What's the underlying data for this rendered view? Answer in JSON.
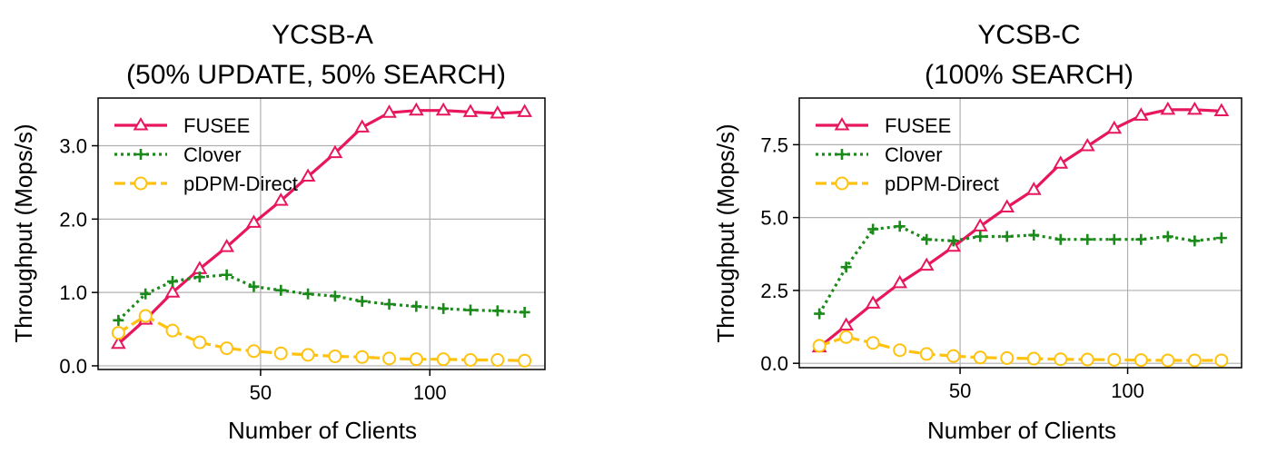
{
  "colors": {
    "fusee": "#e8175d",
    "clover": "#1a8a1a",
    "pdpm": "#ffc20e",
    "grid": "#b0b0b0",
    "axis": "#000000"
  },
  "chart_data": [
    {
      "type": "line",
      "title": "YCSB-A",
      "subtitle": "(50% UPDATE, 50% SEARCH)",
      "xlabel": "Number of Clients",
      "ylabel": "Throughput (Mops/s)",
      "xlim": [
        2,
        134
      ],
      "ylim": [
        -0.05,
        3.65
      ],
      "xticks": [
        50,
        100
      ],
      "yticks": [
        0.0,
        1.0,
        2.0,
        3.0
      ],
      "ytick_labels": [
        "0.0",
        "1.0",
        "2.0",
        "3.0"
      ],
      "grid": true,
      "legend": "top-left",
      "x": [
        8,
        16,
        24,
        32,
        40,
        48,
        56,
        64,
        72,
        80,
        88,
        96,
        104,
        112,
        120,
        128
      ],
      "series": [
        {
          "name": "FUSEE",
          "marker": "triangle",
          "style": "solid",
          "color": "#e8175d",
          "values": [
            0.3,
            0.63,
            1.0,
            1.32,
            1.62,
            1.95,
            2.25,
            2.58,
            2.9,
            3.25,
            3.45,
            3.48,
            3.48,
            3.46,
            3.44,
            3.46
          ]
        },
        {
          "name": "Clover",
          "marker": "plus",
          "style": "dotted",
          "color": "#1a8a1a",
          "values": [
            0.62,
            0.98,
            1.15,
            1.21,
            1.24,
            1.08,
            1.03,
            0.98,
            0.95,
            0.88,
            0.84,
            0.81,
            0.78,
            0.76,
            0.75,
            0.73
          ]
        },
        {
          "name": "pDPM-Direct",
          "marker": "circle",
          "style": "dashed",
          "color": "#ffc20e",
          "values": [
            0.45,
            0.68,
            0.48,
            0.32,
            0.24,
            0.2,
            0.17,
            0.15,
            0.13,
            0.12,
            0.1,
            0.09,
            0.09,
            0.08,
            0.08,
            0.07
          ]
        }
      ]
    },
    {
      "type": "line",
      "title": "YCSB-C",
      "subtitle": "(100% SEARCH)",
      "xlabel": "Number of Clients",
      "ylabel": "Throughput (Mops/s)",
      "xlim": [
        2,
        134
      ],
      "ylim": [
        -0.15,
        9.1
      ],
      "xticks": [
        50,
        100
      ],
      "yticks": [
        0.0,
        2.5,
        5.0,
        7.5
      ],
      "ytick_labels": [
        "0.0",
        "2.5",
        "5.0",
        "7.5"
      ],
      "grid": true,
      "legend": "top-left",
      "x": [
        8,
        16,
        24,
        32,
        40,
        48,
        56,
        64,
        72,
        80,
        88,
        96,
        104,
        112,
        120,
        128
      ],
      "series": [
        {
          "name": "FUSEE",
          "marker": "triangle",
          "style": "solid",
          "color": "#e8175d",
          "values": [
            0.55,
            1.3,
            2.05,
            2.75,
            3.35,
            4.0,
            4.7,
            5.35,
            5.95,
            6.85,
            7.45,
            8.05,
            8.5,
            8.7,
            8.7,
            8.65
          ]
        },
        {
          "name": "Clover",
          "marker": "plus",
          "style": "dotted",
          "color": "#1a8a1a",
          "values": [
            1.7,
            3.3,
            4.6,
            4.7,
            4.25,
            4.2,
            4.35,
            4.35,
            4.4,
            4.25,
            4.25,
            4.25,
            4.25,
            4.35,
            4.2,
            4.3
          ]
        },
        {
          "name": "pDPM-Direct",
          "marker": "circle",
          "style": "dashed",
          "color": "#ffc20e",
          "values": [
            0.6,
            0.9,
            0.7,
            0.45,
            0.32,
            0.25,
            0.2,
            0.18,
            0.16,
            0.14,
            0.13,
            0.12,
            0.11,
            0.1,
            0.1,
            0.1
          ]
        }
      ]
    }
  ]
}
